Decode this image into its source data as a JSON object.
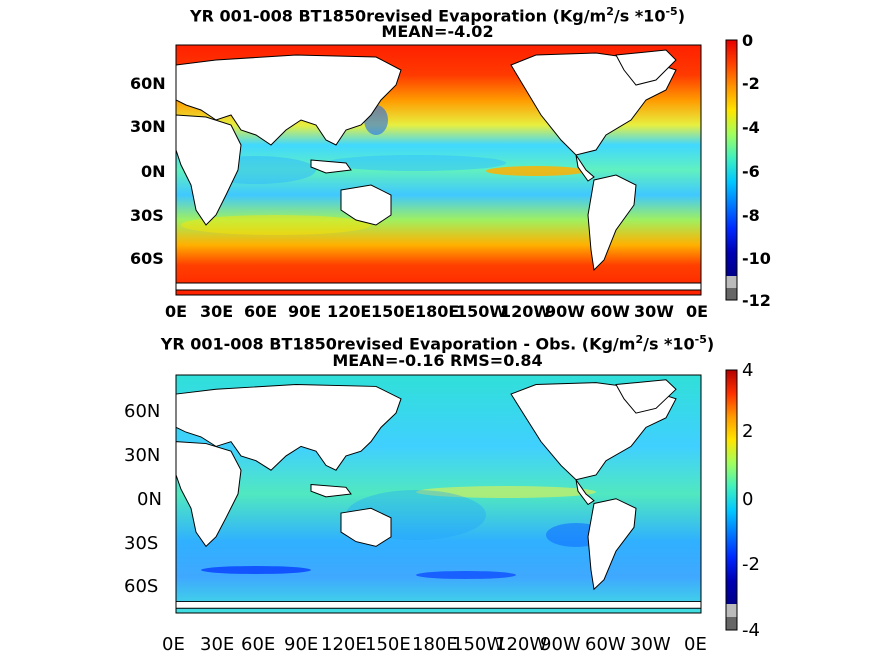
{
  "panels": [
    {
      "title_line1": "YR 001-008 BT1850revised  Evaporation (Kg/m",
      "title_line1_sup": "2",
      "title_line1_mid": "/s *10",
      "title_line1_exp": "-5",
      "title_line1_end": ")",
      "title_line2": "MEAN=-4.02",
      "lat_labels": [
        "60N",
        "30N",
        "0N",
        "30S",
        "60S"
      ],
      "lon_labels": [
        "0E",
        "30E",
        "60E",
        "90E",
        "120E",
        "150E",
        "180E",
        "150W",
        "120W",
        "90W",
        "60W",
        "30W",
        "0E"
      ],
      "colorbar_labels": [
        "0",
        "-2",
        "-4",
        "-6",
        "-8",
        "-10",
        "-12"
      ]
    },
    {
      "title_line1": "YR 001-008 BT1850revised Evaporation - Obs. (Kg/m",
      "title_line1_sup": "2",
      "title_line1_mid": "/s *10",
      "title_line1_exp": "-5",
      "title_line1_end": ")",
      "title_line2": "MEAN=-0.16   RMS=0.84",
      "lat_labels": [
        "60N",
        "30N",
        "0N",
        "30S",
        "60S"
      ],
      "lon_labels": [
        "0E",
        "30E",
        "60E",
        "90E",
        "120E",
        "150E",
        "180E",
        "150W",
        "120W",
        "90W",
        "60W",
        "30W",
        "0E"
      ],
      "colorbar_labels": [
        "4",
        "2",
        "0",
        "-2",
        "-4"
      ]
    }
  ],
  "colors": {
    "land": "#ffffff",
    "coast": "#000000",
    "panel1_ocean_base": "#55e6a8",
    "panel2_ocean_base": "#2fd7e6",
    "colorbar_scale": [
      "#7a0000",
      "#e60000",
      "#ff5a00",
      "#ffaa00",
      "#ffe600",
      "#b4ff50",
      "#50ffb4",
      "#00dcff",
      "#0096ff",
      "#0046ff",
      "#0000c8",
      "#00007a"
    ],
    "colorbar_underflow": [
      "#bbbbbb",
      "#666666"
    ]
  }
}
